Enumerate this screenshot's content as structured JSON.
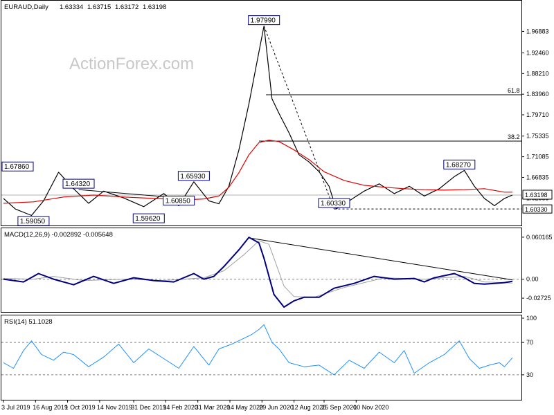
{
  "chart_data": [
    {
      "type": "line",
      "pane": "price",
      "title": "EURAUD,Daily",
      "header_values": [
        "1.63334",
        "1.63715",
        "1.63172",
        "1.63198"
      ],
      "watermark": "ActionForex.com",
      "ylim": [
        1.575,
        2.005
      ],
      "y_ticks": [
        "1.96883",
        "1.92460",
        "1.88210",
        "1.83960",
        "1.79710",
        "1.75335",
        "1.71085",
        "1.66835",
        "1.62585"
      ],
      "y_tick_values": [
        1.96883,
        1.9246,
        1.8821,
        1.8396,
        1.7971,
        1.75335,
        1.71085,
        1.66835,
        1.62585
      ],
      "current_price_label": "1.63198",
      "current_price": 1.63198,
      "support_label": "1.60330",
      "support_price": 1.6033,
      "annotations": [
        {
          "label": "1.67860",
          "date_index": 10,
          "price": 1.6786
        },
        {
          "label": "1.64320",
          "date_index": 75,
          "price": 1.6432
        },
        {
          "label": "1.59050",
          "date_index": 30,
          "price": 1.5905
        },
        {
          "label": "1.59620",
          "date_index": 145,
          "price": 1.5962
        },
        {
          "label": "1.60850",
          "date_index": 175,
          "price": 1.6085
        },
        {
          "label": "1.65930",
          "date_index": 190,
          "price": 1.6593
        },
        {
          "label": "1.97990",
          "date_index": 260,
          "price": 1.9799
        },
        {
          "label": "1.60330",
          "date_index": 330,
          "price": 1.6033
        },
        {
          "label": "1.68270",
          "date_index": 455,
          "price": 1.6827
        }
      ],
      "fib_levels": [
        {
          "label": "61.8",
          "price": 1.8384
        },
        {
          "label": "38.2",
          "price": 1.7431
        }
      ],
      "series": [
        {
          "name": "Price",
          "x": [
            0,
            12,
            28,
            40,
            55,
            70,
            85,
            100,
            120,
            140,
            160,
            175,
            190,
            205,
            215,
            225,
            235,
            245,
            252,
            260,
            268,
            275,
            285,
            295,
            305,
            315,
            325,
            332,
            345,
            360,
            375,
            390,
            405,
            420,
            435,
            450,
            460,
            470,
            480,
            490,
            500,
            508
          ],
          "values": [
            1.625,
            1.603,
            1.59,
            1.62,
            1.679,
            1.645,
            1.615,
            1.64,
            1.626,
            1.608,
            1.635,
            1.61,
            1.6593,
            1.62,
            1.614,
            1.65,
            1.725,
            1.82,
            1.895,
            1.9799,
            1.83,
            1.8,
            1.76,
            1.715,
            1.7,
            1.68,
            1.65,
            1.6033,
            1.62,
            1.64,
            1.655,
            1.635,
            1.65,
            1.63,
            1.645,
            1.67,
            1.6827,
            1.65,
            1.625,
            1.61,
            1.625,
            1.632
          ]
        },
        {
          "name": "MA",
          "x": [
            0,
            30,
            60,
            90,
            120,
            150,
            180,
            200,
            215,
            225,
            235,
            245,
            255,
            265,
            275,
            290,
            305,
            320,
            340,
            360,
            380,
            400,
            420,
            440,
            460,
            480,
            500,
            508
          ],
          "values": [
            1.615,
            1.618,
            1.628,
            1.632,
            1.628,
            1.625,
            1.622,
            1.624,
            1.63,
            1.648,
            1.678,
            1.715,
            1.74,
            1.745,
            1.742,
            1.725,
            1.705,
            1.68,
            1.662,
            1.652,
            1.648,
            1.645,
            1.643,
            1.642,
            1.643,
            1.645,
            1.638,
            1.638
          ]
        }
      ],
      "trendlines": [
        {
          "x1": 75,
          "y1": 1.6432,
          "x2": 175,
          "y2": 1.626
        },
        {
          "x1": 260,
          "y1": 1.9799,
          "x2": 330,
          "y2": 1.6033
        }
      ]
    },
    {
      "type": "line",
      "pane": "macd",
      "title": "MACD(12,26,9) -0.002892 -0.005648",
      "ylim": [
        -0.045,
        0.068
      ],
      "y_ticks": [
        "0.060165",
        "0.00",
        "-0.02725"
      ],
      "y_tick_values": [
        0.060165,
        0.0,
        -0.02725
      ],
      "series": [
        {
          "name": "MACD",
          "x": [
            0,
            20,
            35,
            50,
            70,
            90,
            110,
            130,
            150,
            170,
            190,
            200,
            210,
            220,
            235,
            245,
            255,
            260,
            270,
            280,
            290,
            300,
            315,
            330,
            350,
            370,
            390,
            410,
            420,
            430,
            450,
            460,
            470,
            480,
            490,
            500,
            508
          ],
          "values": [
            0.0,
            -0.004,
            0.008,
            0.0,
            -0.008,
            0.004,
            -0.006,
            0.002,
            -0.002,
            -0.004,
            0.008,
            0.0,
            0.004,
            0.018,
            0.042,
            0.06,
            0.052,
            0.03,
            -0.022,
            -0.04,
            -0.031,
            -0.026,
            -0.026,
            -0.013,
            -0.006,
            0.004,
            0.0,
            0.001,
            -0.004,
            0.002,
            0.008,
            0.002,
            -0.006,
            -0.007,
            -0.006,
            -0.005,
            -0.003
          ]
        },
        {
          "name": "Signal",
          "x": [
            0,
            30,
            50,
            80,
            120,
            160,
            200,
            220,
            240,
            255,
            265,
            280,
            290,
            310,
            340,
            380,
            420,
            460,
            480,
            508
          ],
          "values": [
            0.001,
            0.0,
            0.004,
            -0.002,
            0.0,
            -0.002,
            0.002,
            0.012,
            0.035,
            0.055,
            0.05,
            -0.01,
            -0.025,
            -0.026,
            -0.012,
            0.002,
            0.0,
            0.004,
            -0.004,
            -0.0056
          ]
        }
      ],
      "trendlines": [
        {
          "x1": 248,
          "y1": 0.0585,
          "x2": 508,
          "y2": -0.001
        }
      ]
    },
    {
      "type": "line",
      "pane": "rsi",
      "title": "RSI(14) 51.1028",
      "ylim": [
        0,
        100
      ],
      "y_ticks": [
        "100",
        "70",
        "30"
      ],
      "y_tick_values": [
        100,
        70,
        30
      ],
      "series": [
        {
          "name": "RSI",
          "x": [
            0,
            10,
            20,
            28,
            38,
            50,
            60,
            70,
            85,
            100,
            115,
            130,
            145,
            160,
            175,
            190,
            205,
            215,
            228,
            238,
            248,
            255,
            260,
            268,
            275,
            285,
            300,
            315,
            330,
            345,
            360,
            375,
            390,
            400,
            410,
            425,
            440,
            455,
            465,
            475,
            485,
            495,
            500,
            508
          ],
          "values": [
            45,
            38,
            60,
            72,
            55,
            48,
            58,
            55,
            40,
            52,
            68,
            45,
            62,
            50,
            38,
            65,
            42,
            62,
            68,
            74,
            80,
            86,
            92,
            70,
            62,
            45,
            40,
            42,
            30,
            48,
            38,
            58,
            45,
            60,
            32,
            45,
            55,
            72,
            50,
            38,
            42,
            45,
            40,
            51.1
          ]
        }
      ]
    }
  ],
  "x_axis": {
    "tick_labels": [
      "3 Jul 2019",
      "16 Aug 2019",
      "1 Oct 2019",
      "14 Nov 2019",
      "31 Dec 2019",
      "14 Feb 2020",
      "31 Mar 2020",
      "14 May 2020",
      "29 Jun 2020",
      "12 Aug 2020",
      "25 Sep 2020",
      "10 Nov 2020"
    ],
    "tick_index": [
      0,
      32,
      64,
      96,
      130,
      162,
      194,
      226,
      258,
      290,
      320,
      352
    ],
    "range": [
      0,
      508
    ]
  },
  "colors": {
    "price": "#000000",
    "ma": "#e00000",
    "macd": "#000080",
    "signal": "#a0a0a0",
    "rsi": "#1e90ff",
    "annotation_border": "#000080",
    "watermark": "#c8c8c8"
  }
}
